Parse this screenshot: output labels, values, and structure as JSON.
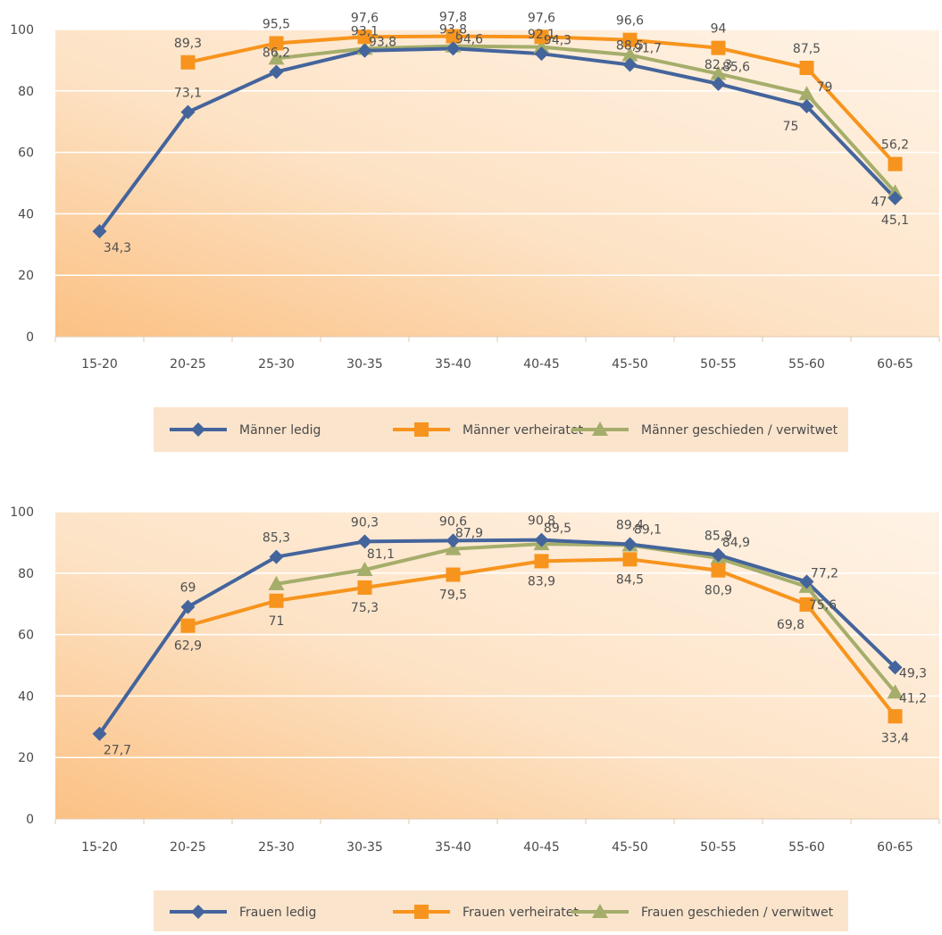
{
  "colors": {
    "blue": "#44649C",
    "orange": "#F7941D",
    "green": "#A5AD6B",
    "legend_bg": "#FBE4CC",
    "grid": "#FFFFFF",
    "axis_text": "#4A4A4A"
  },
  "chart_data": [
    {
      "type": "line",
      "categories": [
        "15-20",
        "20-25",
        "25-30",
        "30-35",
        "35-40",
        "40-45",
        "45-50",
        "50-55",
        "55-60",
        "60-65"
      ],
      "ylim": [
        0,
        100
      ],
      "yticks": [
        0,
        20,
        40,
        60,
        80,
        100
      ],
      "grid": true,
      "legend_position": "bottom",
      "series": [
        {
          "name": "Männer ledig",
          "marker": "diamond",
          "color": "#44649C",
          "values": [
            34.3,
            73.1,
            86.2,
            93.1,
            93.8,
            92.1,
            88.5,
            82.3,
            75,
            45.1
          ],
          "labels": [
            "34,3",
            "73,1",
            "86,2",
            "93,1",
            "93,8",
            "92,1",
            "88,5",
            "82,3",
            "75",
            "45,1"
          ]
        },
        {
          "name": "Männer verheiratet",
          "marker": "square",
          "color": "#F7941D",
          "values": [
            null,
            89.3,
            95.5,
            97.6,
            97.8,
            97.6,
            96.6,
            94,
            87.5,
            56.2
          ],
          "labels": [
            "",
            "89,3",
            "95,5",
            "97,6",
            "97,8",
            "97,6",
            "96,6",
            "94",
            "87,5",
            "56,2"
          ]
        },
        {
          "name": "Männer geschieden / verwitwet",
          "marker": "triangle",
          "color": "#A5AD6B",
          "values": [
            null,
            null,
            90.6,
            93.8,
            94.6,
            94.3,
            91.7,
            85.6,
            79,
            47
          ],
          "labels": [
            "",
            "",
            "",
            "93,8",
            "94,6",
            "94,3",
            "91,7",
            "85,6",
            "79",
            "47"
          ]
        }
      ]
    },
    {
      "type": "line",
      "categories": [
        "15-20",
        "20-25",
        "25-30",
        "30-35",
        "35-40",
        "40-45",
        "45-50",
        "50-55",
        "55-60",
        "60-65"
      ],
      "ylim": [
        0,
        100
      ],
      "yticks": [
        0,
        20,
        40,
        60,
        80,
        100
      ],
      "grid": true,
      "legend_position": "bottom",
      "series": [
        {
          "name": "Frauen ledig",
          "marker": "diamond",
          "color": "#44649C",
          "values": [
            27.7,
            69,
            85.3,
            90.3,
            90.6,
            90.8,
            89.4,
            85.9,
            77.2,
            49.3
          ],
          "labels": [
            "27,7",
            "69",
            "85,3",
            "90,3",
            "90,6",
            "90,8",
            "89,4",
            "85,9",
            "77,2",
            "49,3"
          ]
        },
        {
          "name": "Frauen verheiratet",
          "marker": "square",
          "color": "#F7941D",
          "values": [
            null,
            62.9,
            71,
            75.3,
            79.5,
            83.9,
            84.5,
            80.9,
            69.8,
            33.4
          ],
          "labels": [
            "",
            "62,9",
            "71",
            "75,3",
            "79,5",
            "83,9",
            "84,5",
            "80,9",
            "69,8",
            "33,4"
          ]
        },
        {
          "name": "Frauen geschieden / verwitwet",
          "marker": "triangle",
          "color": "#A5AD6B",
          "values": [
            null,
            null,
            76.5,
            81.1,
            87.9,
            89.5,
            89.1,
            84.9,
            75.6,
            41.2
          ],
          "labels": [
            "",
            "",
            "",
            "81,1",
            "87,9",
            "89,5",
            "89,1",
            "84,9",
            "75,6",
            "41,2"
          ]
        }
      ]
    }
  ]
}
